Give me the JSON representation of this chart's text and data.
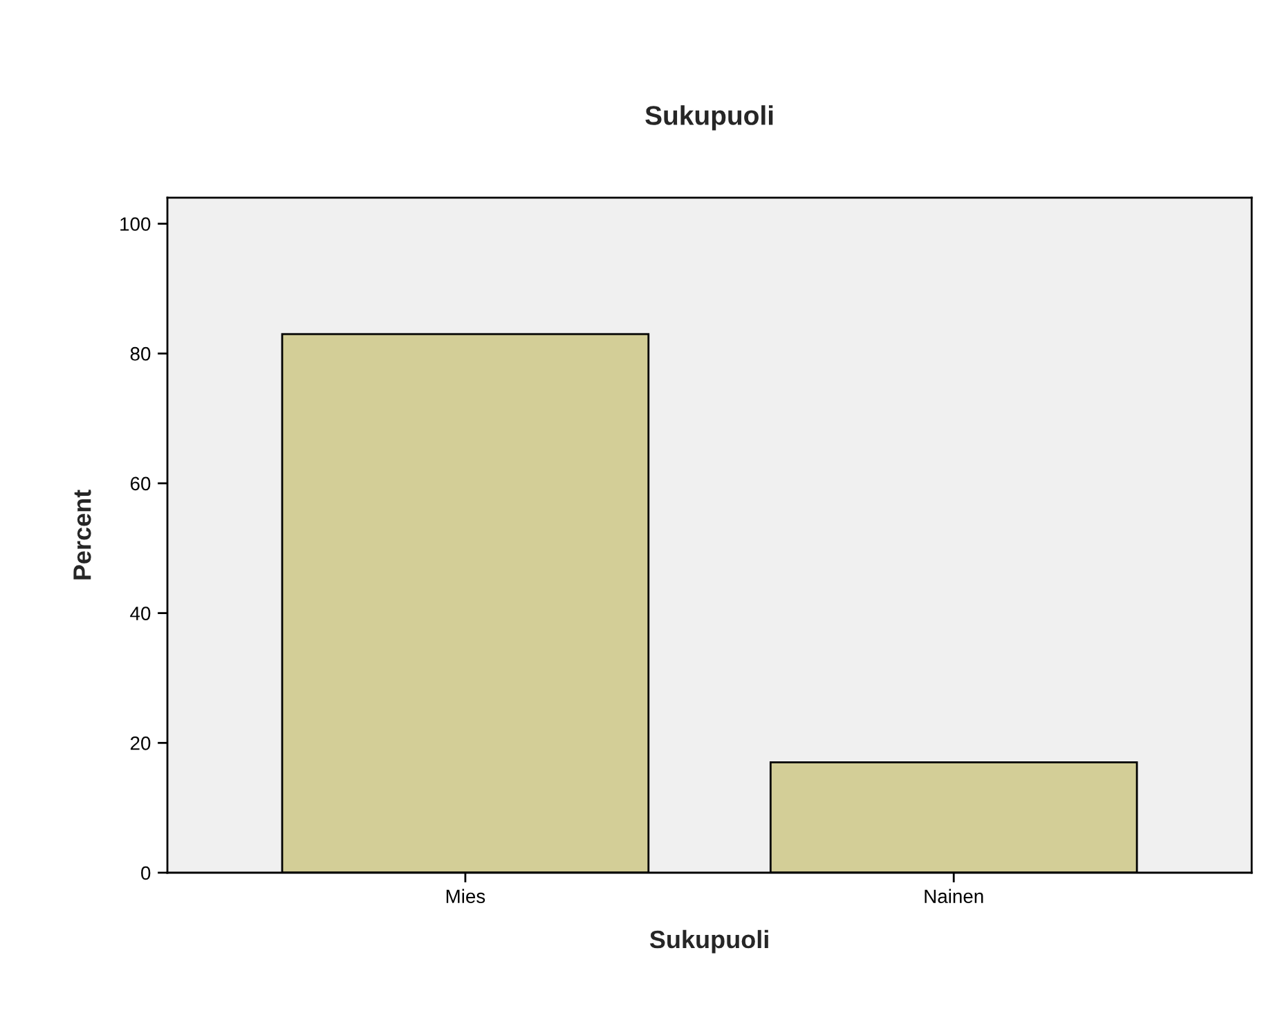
{
  "chart_data": {
    "type": "bar",
    "title": "Sukupuoli",
    "xlabel": "Sukupuoli",
    "ylabel": "Percent",
    "categories": [
      "Mies",
      "Nainen"
    ],
    "values": [
      83,
      17
    ],
    "color": "#d3ce97",
    "ylim": [
      0,
      104
    ],
    "yticks": [
      0,
      20,
      40,
      60,
      80,
      100
    ],
    "grid": false,
    "legend": false
  }
}
